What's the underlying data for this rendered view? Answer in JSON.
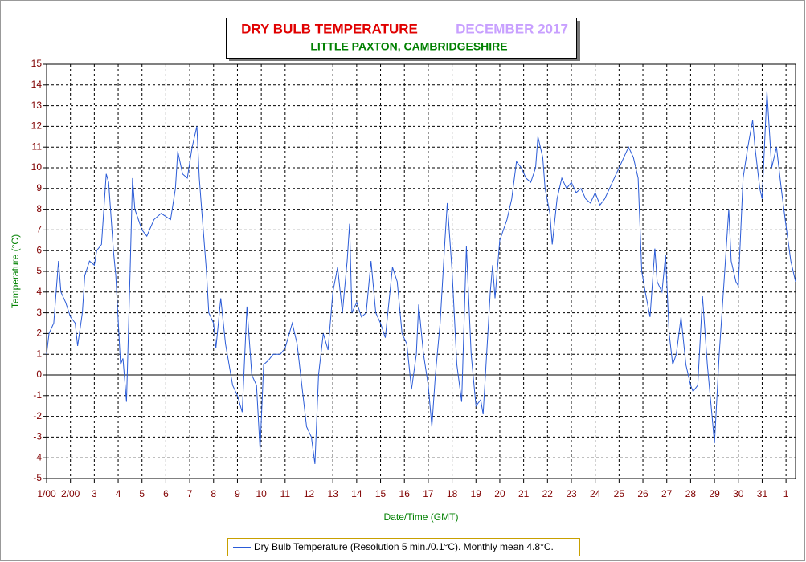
{
  "chart_data": {
    "type": "line",
    "title": "DRY BULB TEMPERATURE",
    "title_period": "DECEMBER 2017",
    "subtitle": "LITTLE PAXTON, CAMBRIDGESHIRE",
    "y_label": "Temperature (°C)",
    "x_label": "Date/Time (GMT)",
    "xlim": [
      1,
      32.4
    ],
    "ylim": [
      -5,
      15
    ],
    "yticks": [
      -5,
      -4,
      -3,
      -2,
      -1,
      0,
      1,
      2,
      3,
      4,
      5,
      6,
      7,
      8,
      9,
      10,
      11,
      12,
      13,
      14,
      15
    ],
    "xticks": [
      {
        "value": 1,
        "label": "1/00"
      },
      {
        "value": 2,
        "label": "2/00"
      },
      3,
      4,
      5,
      6,
      7,
      8,
      9,
      10,
      11,
      12,
      13,
      14,
      15,
      16,
      17,
      18,
      19,
      20,
      21,
      22,
      23,
      24,
      25,
      26,
      27,
      28,
      29,
      30,
      31,
      {
        "value": 32,
        "label": "1"
      }
    ],
    "grid": true,
    "x": [
      1.0,
      1.1,
      1.3,
      1.5,
      1.6,
      1.8,
      2.0,
      2.2,
      2.3,
      2.5,
      2.6,
      2.8,
      3.0,
      3.1,
      3.3,
      3.5,
      3.6,
      3.8,
      3.9,
      4.1,
      4.2,
      4.35,
      4.5,
      4.6,
      4.7,
      5.0,
      5.2,
      5.5,
      5.8,
      6.2,
      6.4,
      6.5,
      6.7,
      6.9,
      7.1,
      7.3,
      7.4,
      7.5,
      7.7,
      7.8,
      8.0,
      8.1,
      8.3,
      8.5,
      8.8,
      9.0,
      9.2,
      9.4,
      9.6,
      9.8,
      9.95,
      10.1,
      10.3,
      10.5,
      10.8,
      11.0,
      11.3,
      11.5,
      11.7,
      11.9,
      12.1,
      12.25,
      12.4,
      12.6,
      12.8,
      13.0,
      13.2,
      13.4,
      13.6,
      13.7,
      13.8,
      14.0,
      14.2,
      14.4,
      14.6,
      14.8,
      15.0,
      15.2,
      15.5,
      15.7,
      15.9,
      16.1,
      16.3,
      16.5,
      16.6,
      16.8,
      17.0,
      17.15,
      17.3,
      17.5,
      17.7,
      17.8,
      18.0,
      18.2,
      18.4,
      18.6,
      18.8,
      19.0,
      19.2,
      19.3,
      19.5,
      19.6,
      19.7,
      19.8,
      20.0,
      20.3,
      20.5,
      20.7,
      20.9,
      21.1,
      21.3,
      21.5,
      21.6,
      21.8,
      21.9,
      22.1,
      22.2,
      22.4,
      22.6,
      22.8,
      23.0,
      23.2,
      23.4,
      23.6,
      23.8,
      24.0,
      24.2,
      24.4,
      24.6,
      24.8,
      25.0,
      25.2,
      25.4,
      25.6,
      25.8,
      25.95,
      26.1,
      26.3,
      26.5,
      26.6,
      26.8,
      26.95,
      27.1,
      27.25,
      27.4,
      27.6,
      27.8,
      28.0,
      28.1,
      28.3,
      28.5,
      28.7,
      28.9,
      29.0,
      29.2,
      29.4,
      29.6,
      29.7,
      29.9,
      30.0,
      30.2,
      30.4,
      30.6,
      30.7,
      30.9,
      31.0,
      31.2,
      31.4,
      31.6,
      31.8,
      32.0,
      32.2,
      32.4
    ],
    "series": [
      {
        "name": "Dry Bulb Temperature (Resolution 5 min./0.1°C). Monthly mean 4.8°C.",
        "color": "#2a5bd7",
        "values": [
          1.0,
          2.0,
          2.5,
          5.5,
          4.0,
          3.5,
          2.8,
          2.5,
          1.4,
          3.0,
          4.8,
          5.5,
          5.3,
          6.0,
          6.3,
          9.7,
          9.3,
          6.0,
          4.8,
          0.5,
          0.8,
          -1.3,
          5.0,
          9.5,
          8.0,
          7.0,
          6.7,
          7.5,
          7.8,
          7.5,
          9.0,
          10.8,
          9.7,
          9.5,
          11.0,
          12.0,
          9.5,
          8.0,
          5.0,
          3.0,
          2.5,
          1.3,
          3.7,
          1.5,
          -0.5,
          -1.0,
          -1.8,
          3.3,
          0.0,
          -0.5,
          -3.6,
          0.5,
          0.7,
          1.0,
          1.0,
          1.3,
          2.5,
          1.5,
          -0.5,
          -2.5,
          -3.0,
          -4.3,
          0.0,
          2.0,
          1.2,
          4.0,
          5.2,
          3.0,
          5.5,
          7.3,
          3.0,
          3.5,
          2.8,
          3.0,
          5.5,
          3.0,
          2.5,
          1.8,
          5.2,
          4.5,
          2.0,
          1.5,
          -0.7,
          1.0,
          3.4,
          1.0,
          -0.5,
          -2.5,
          0.0,
          2.5,
          6.5,
          8.3,
          5.0,
          0.5,
          -1.3,
          6.2,
          1.0,
          -1.5,
          -1.2,
          -1.9,
          2.0,
          4.0,
          5.3,
          3.7,
          6.5,
          7.5,
          8.5,
          10.3,
          10.0,
          9.5,
          9.3,
          10.0,
          11.5,
          10.5,
          9.0,
          7.8,
          6.3,
          8.5,
          9.5,
          9.0,
          9.3,
          8.8,
          9.0,
          8.5,
          8.3,
          8.8,
          8.2,
          8.5,
          9.0,
          9.5,
          10.0,
          10.5,
          11.0,
          10.5,
          9.5,
          5.0,
          4.0,
          2.8,
          6.1,
          4.5,
          4.0,
          5.8,
          2.0,
          0.5,
          1.0,
          2.8,
          0.5,
          -0.5,
          -0.8,
          -0.5,
          3.8,
          0.5,
          -2.0,
          -3.3,
          1.0,
          4.5,
          8.0,
          5.5,
          4.5,
          4.3,
          9.5,
          11.0,
          12.3,
          11.0,
          9.0,
          8.5,
          13.7,
          10.0,
          11.0,
          9.0,
          7.2,
          5.5,
          4.5
        ]
      }
    ]
  }
}
